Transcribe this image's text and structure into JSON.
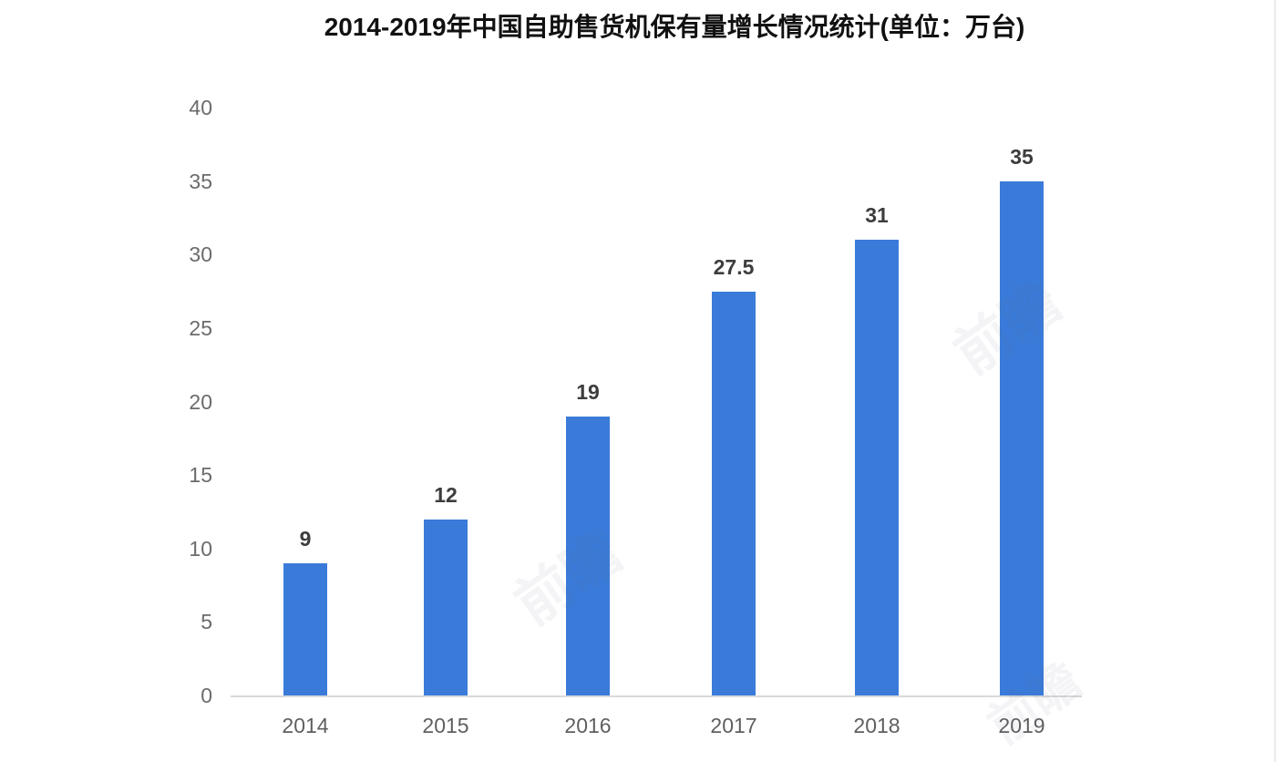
{
  "page": {
    "background": "#ffffff"
  },
  "chart_data": {
    "type": "bar",
    "title": "2014-2019年中国自助售货机保有量增长情况统计(单位：万台)",
    "categories": [
      "2014",
      "2015",
      "2016",
      "2017",
      "2018",
      "2019"
    ],
    "values": [
      9,
      12,
      19,
      27.5,
      31,
      35
    ],
    "value_labels": [
      "9",
      "12",
      "19",
      "27.5",
      "31",
      "35"
    ],
    "xlabel": "",
    "ylabel": "",
    "ylim": [
      0,
      40
    ],
    "yticks": [
      0,
      5,
      10,
      15,
      20,
      25,
      30,
      35,
      40
    ],
    "ytick_labels": [
      "0",
      "5",
      "10",
      "15",
      "20",
      "25",
      "30",
      "35",
      "40"
    ],
    "grid": false,
    "legend_position": "none",
    "bar_color": "#3a7bd9",
    "axis_line_color": "#d9d9d9",
    "ytick_label_color": "#6b6b6b",
    "xtick_label_color": "#5f5f5f",
    "value_label_color": "#3d3d3d",
    "title_color": "#111111"
  },
  "watermark": {
    "text": "前瞻"
  }
}
